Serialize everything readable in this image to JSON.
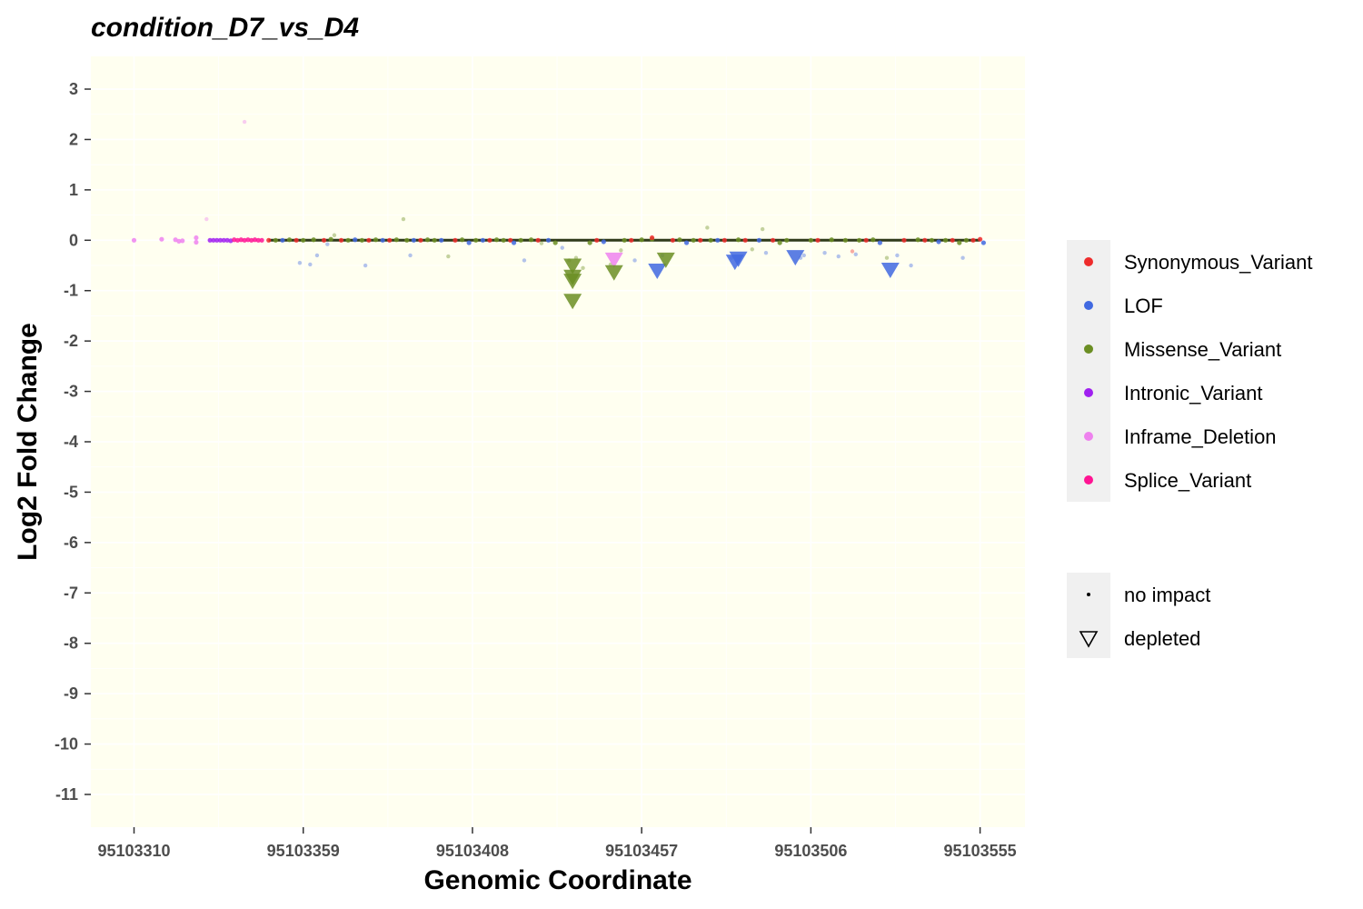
{
  "chart_data": {
    "type": "scatter",
    "title": "condition_D7_vs_D4",
    "xlabel": "Genomic Coordinate",
    "ylabel": "Log2 Fold Change",
    "xlim": [
      95103297.5,
      95103568
    ],
    "ylim": [
      -11.65,
      3.65
    ],
    "x_ticks": [
      95103310,
      95103359,
      95103408,
      95103457,
      95103506,
      95103555
    ],
    "x_tick_labels": [
      "95103310",
      "95103359",
      "95103408",
      "95103457",
      "95103506",
      "95103555"
    ],
    "y_ticks": [
      3,
      2,
      1,
      0,
      -1,
      -2,
      -3,
      -4,
      -5,
      -6,
      -7,
      -8,
      -9,
      -10,
      -11
    ],
    "y_tick_labels": [
      "3",
      "2",
      "1",
      "0",
      "-1",
      "-2",
      "-3",
      "-4",
      "-5",
      "-6",
      "-7",
      "-8",
      "-9",
      "-10",
      "-11"
    ],
    "grid": true,
    "panel_background": "#fffff0",
    "grid_color": "#ffffff",
    "legend_position": "right",
    "colors": {
      "Synonymous_Variant": "#ee2c2c",
      "LOF": "#4169e1",
      "Missense_Variant": "#6b8e23",
      "Intronic_Variant": "#a020f0",
      "Inframe_Deletion": "#ee82ee",
      "Splice_Variant": "#ff1493"
    },
    "legend_color_entries": [
      {
        "label": "Synonymous_Variant",
        "color": "#ee2c2c"
      },
      {
        "label": "LOF",
        "color": "#4169e1"
      },
      {
        "label": "Missense_Variant",
        "color": "#6b8e23"
      },
      {
        "label": "Intronic_Variant",
        "color": "#a020f0"
      },
      {
        "label": "Inframe_Deletion",
        "color": "#ee82ee"
      },
      {
        "label": "Splice_Variant",
        "color": "#ff1493"
      }
    ],
    "legend_shape_entries": [
      {
        "label": "no impact",
        "shape": "small-dot"
      },
      {
        "label": "depleted",
        "shape": "down-triangle"
      }
    ],
    "depleted_points": [
      {
        "x": 95103437,
        "y": -0.5,
        "category": "Missense_Variant"
      },
      {
        "x": 95103437,
        "y": -0.72,
        "category": "Missense_Variant"
      },
      {
        "x": 95103437,
        "y": -0.8,
        "category": "Missense_Variant"
      },
      {
        "x": 95103437,
        "y": -1.2,
        "category": "Missense_Variant"
      },
      {
        "x": 95103449,
        "y": -0.38,
        "category": "Inframe_Deletion"
      },
      {
        "x": 95103449,
        "y": -0.63,
        "category": "Missense_Variant"
      },
      {
        "x": 95103461.5,
        "y": -0.6,
        "category": "LOF"
      },
      {
        "x": 95103464,
        "y": -0.38,
        "category": "Missense_Variant"
      },
      {
        "x": 95103484,
        "y": -0.42,
        "category": "LOF"
      },
      {
        "x": 95103485,
        "y": -0.36,
        "category": "LOF"
      },
      {
        "x": 95103501.5,
        "y": -0.33,
        "category": "LOF"
      },
      {
        "x": 95103529,
        "y": -0.58,
        "category": "LOF"
      }
    ],
    "no_impact_points": [
      {
        "x": 95103310,
        "y": 0.0,
        "category": "Inframe_Deletion"
      },
      {
        "x": 95103318,
        "y": 0.02,
        "category": "Inframe_Deletion"
      },
      {
        "x": 95103322,
        "y": 0.01,
        "category": "Inframe_Deletion"
      },
      {
        "x": 95103323,
        "y": -0.02,
        "category": "Inframe_Deletion"
      },
      {
        "x": 95103324,
        "y": -0.01,
        "category": "Inframe_Deletion"
      },
      {
        "x": 95103328,
        "y": 0.05,
        "category": "Inframe_Deletion"
      },
      {
        "x": 95103328,
        "y": -0.04,
        "category": "Inframe_Deletion"
      },
      {
        "x": 95103331,
        "y": 0.42,
        "category": "Inframe_Deletion"
      },
      {
        "x": 95103332,
        "y": 0.0,
        "category": "Intronic_Variant"
      },
      {
        "x": 95103333,
        "y": 0.0,
        "category": "Intronic_Variant"
      },
      {
        "x": 95103334,
        "y": 0.0,
        "category": "Intronic_Variant"
      },
      {
        "x": 95103335,
        "y": 0.0,
        "category": "Intronic_Variant"
      },
      {
        "x": 95103336,
        "y": 0.0,
        "category": "Intronic_Variant"
      },
      {
        "x": 95103337,
        "y": 0.0,
        "category": "Intronic_Variant"
      },
      {
        "x": 95103338,
        "y": -0.01,
        "category": "Intronic_Variant"
      },
      {
        "x": 95103339,
        "y": 0.01,
        "category": "Splice_Variant"
      },
      {
        "x": 95103340,
        "y": 0.0,
        "category": "Splice_Variant"
      },
      {
        "x": 95103341,
        "y": 0.01,
        "category": "Splice_Variant"
      },
      {
        "x": 95103342,
        "y": 2.35,
        "category": "Inframe_Deletion"
      },
      {
        "x": 95103342,
        "y": 0.0,
        "category": "Splice_Variant"
      },
      {
        "x": 95103343,
        "y": 0.01,
        "category": "Splice_Variant"
      },
      {
        "x": 95103344,
        "y": 0.0,
        "category": "Splice_Variant"
      },
      {
        "x": 95103345,
        "y": 0.01,
        "category": "Splice_Variant"
      },
      {
        "x": 95103346,
        "y": 0.0,
        "category": "Splice_Variant"
      },
      {
        "x": 95103347,
        "y": 0.0,
        "category": "Splice_Variant"
      },
      {
        "x": 95103349,
        "y": 0.0,
        "category": "Synonymous_Variant"
      },
      {
        "x": 95103351,
        "y": 0.0,
        "category": "Missense_Variant"
      },
      {
        "x": 95103353,
        "y": 0.0,
        "category": "LOF"
      },
      {
        "x": 95103355,
        "y": 0.01,
        "category": "Missense_Variant"
      },
      {
        "x": 95103357,
        "y": 0.0,
        "category": "Synonymous_Variant"
      },
      {
        "x": 95103358,
        "y": -0.45,
        "category": "LOF"
      },
      {
        "x": 95103359,
        "y": 0.0,
        "category": "Missense_Variant"
      },
      {
        "x": 95103361,
        "y": -0.48,
        "category": "LOF"
      },
      {
        "x": 95103362,
        "y": 0.01,
        "category": "Missense_Variant"
      },
      {
        "x": 95103363,
        "y": -0.3,
        "category": "LOF"
      },
      {
        "x": 95103365,
        "y": 0.0,
        "category": "Synonymous_Variant"
      },
      {
        "x": 95103366,
        "y": -0.08,
        "category": "LOF"
      },
      {
        "x": 95103367,
        "y": 0.02,
        "category": "Missense_Variant"
      },
      {
        "x": 95103368,
        "y": 0.1,
        "category": "Missense_Variant"
      },
      {
        "x": 95103370,
        "y": 0.0,
        "category": "Synonymous_Variant"
      },
      {
        "x": 95103372,
        "y": 0.0,
        "category": "Missense_Variant"
      },
      {
        "x": 95103374,
        "y": 0.01,
        "category": "LOF"
      },
      {
        "x": 95103376,
        "y": 0.0,
        "category": "Missense_Variant"
      },
      {
        "x": 95103377,
        "y": -0.5,
        "category": "LOF"
      },
      {
        "x": 95103378,
        "y": 0.0,
        "category": "Synonymous_Variant"
      },
      {
        "x": 95103380,
        "y": 0.01,
        "category": "Missense_Variant"
      },
      {
        "x": 95103382,
        "y": 0.0,
        "category": "LOF"
      },
      {
        "x": 95103384,
        "y": 0.0,
        "category": "Synonymous_Variant"
      },
      {
        "x": 95103386,
        "y": 0.01,
        "category": "Missense_Variant"
      },
      {
        "x": 95103388,
        "y": 0.42,
        "category": "Missense_Variant"
      },
      {
        "x": 95103389,
        "y": 0.0,
        "category": "Missense_Variant"
      },
      {
        "x": 95103390,
        "y": -0.3,
        "category": "LOF"
      },
      {
        "x": 95103391,
        "y": 0.0,
        "category": "LOF"
      },
      {
        "x": 95103393,
        "y": 0.0,
        "category": "Synonymous_Variant"
      },
      {
        "x": 95103395,
        "y": 0.01,
        "category": "Missense_Variant"
      },
      {
        "x": 95103397,
        "y": 0.0,
        "category": "Missense_Variant"
      },
      {
        "x": 95103399,
        "y": 0.0,
        "category": "LOF"
      },
      {
        "x": 95103401,
        "y": -0.32,
        "category": "Missense_Variant"
      },
      {
        "x": 95103403,
        "y": 0.0,
        "category": "Synonymous_Variant"
      },
      {
        "x": 95103405,
        "y": 0.01,
        "category": "Missense_Variant"
      },
      {
        "x": 95103407,
        "y": -0.05,
        "category": "LOF"
      },
      {
        "x": 95103409,
        "y": 0.0,
        "category": "Missense_Variant"
      },
      {
        "x": 95103411,
        "y": 0.0,
        "category": "LOF"
      },
      {
        "x": 95103413,
        "y": 0.0,
        "category": "Synonymous_Variant"
      },
      {
        "x": 95103415,
        "y": 0.01,
        "category": "Missense_Variant"
      },
      {
        "x": 95103417,
        "y": 0.0,
        "category": "Missense_Variant"
      },
      {
        "x": 95103419,
        "y": 0.0,
        "category": "Synonymous_Variant"
      },
      {
        "x": 95103420,
        "y": -0.05,
        "category": "LOF"
      },
      {
        "x": 95103422,
        "y": 0.0,
        "category": "Missense_Variant"
      },
      {
        "x": 95103423,
        "y": -0.4,
        "category": "LOF"
      },
      {
        "x": 95103425,
        "y": 0.01,
        "category": "Missense_Variant"
      },
      {
        "x": 95103427,
        "y": 0.0,
        "category": "Synonymous_Variant"
      },
      {
        "x": 95103428,
        "y": -0.06,
        "category": "Missense_Variant"
      },
      {
        "x": 95103430,
        "y": 0.0,
        "category": "LOF"
      },
      {
        "x": 95103432,
        "y": -0.05,
        "category": "Missense_Variant"
      },
      {
        "x": 95103434,
        "y": -0.15,
        "category": "LOF"
      },
      {
        "x": 95103436,
        "y": -0.4,
        "category": "Missense_Variant"
      },
      {
        "x": 95103438,
        "y": -0.35,
        "category": "Missense_Variant"
      },
      {
        "x": 95103440,
        "y": -0.55,
        "category": "Missense_Variant"
      },
      {
        "x": 95103442,
        "y": -0.05,
        "category": "Missense_Variant"
      },
      {
        "x": 95103444,
        "y": 0.0,
        "category": "Synonymous_Variant"
      },
      {
        "x": 95103446,
        "y": -0.03,
        "category": "LOF"
      },
      {
        "x": 95103448,
        "y": -0.48,
        "category": "Missense_Variant"
      },
      {
        "x": 95103451,
        "y": -0.2,
        "category": "Missense_Variant"
      },
      {
        "x": 95103452,
        "y": 0.0,
        "category": "Missense_Variant"
      },
      {
        "x": 95103454,
        "y": 0.0,
        "category": "Synonymous_Variant"
      },
      {
        "x": 95103455,
        "y": -0.4,
        "category": "LOF"
      },
      {
        "x": 95103457,
        "y": 0.01,
        "category": "Missense_Variant"
      },
      {
        "x": 95103460,
        "y": 0.02,
        "category": "Missense_Variant"
      },
      {
        "x": 95103460,
        "y": 0.05,
        "category": "Synonymous_Variant"
      },
      {
        "x": 95103463,
        "y": -0.3,
        "category": "LOF"
      },
      {
        "x": 95103466,
        "y": 0.0,
        "category": "Synonymous_Variant"
      },
      {
        "x": 95103468,
        "y": 0.01,
        "category": "Missense_Variant"
      },
      {
        "x": 95103470,
        "y": -0.05,
        "category": "LOF"
      },
      {
        "x": 95103472,
        "y": 0.0,
        "category": "Missense_Variant"
      },
      {
        "x": 95103474,
        "y": 0.0,
        "category": "Synonymous_Variant"
      },
      {
        "x": 95103476,
        "y": 0.25,
        "category": "Missense_Variant"
      },
      {
        "x": 95103477,
        "y": 0.0,
        "category": "Missense_Variant"
      },
      {
        "x": 95103479,
        "y": 0.0,
        "category": "LOF"
      },
      {
        "x": 95103481,
        "y": 0.0,
        "category": "Synonymous_Variant"
      },
      {
        "x": 95103483,
        "y": -0.35,
        "category": "LOF"
      },
      {
        "x": 95103485,
        "y": 0.01,
        "category": "Missense_Variant"
      },
      {
        "x": 95103487,
        "y": 0.0,
        "category": "Synonymous_Variant"
      },
      {
        "x": 95103489,
        "y": -0.18,
        "category": "Missense_Variant"
      },
      {
        "x": 95103491,
        "y": 0.0,
        "category": "LOF"
      },
      {
        "x": 95103492,
        "y": 0.22,
        "category": "Missense_Variant"
      },
      {
        "x": 95103493,
        "y": -0.25,
        "category": "LOF"
      },
      {
        "x": 95103495,
        "y": 0.0,
        "category": "Synonymous_Variant"
      },
      {
        "x": 95103497,
        "y": -0.05,
        "category": "Missense_Variant"
      },
      {
        "x": 95103499,
        "y": 0.0,
        "category": "Missense_Variant"
      },
      {
        "x": 95103503,
        "y": -0.35,
        "category": "LOF"
      },
      {
        "x": 95103504,
        "y": -0.3,
        "category": "LOF"
      },
      {
        "x": 95103506,
        "y": 0.0,
        "category": "Missense_Variant"
      },
      {
        "x": 95103508,
        "y": 0.0,
        "category": "Synonymous_Variant"
      },
      {
        "x": 95103510,
        "y": -0.25,
        "category": "LOF"
      },
      {
        "x": 95103512,
        "y": 0.01,
        "category": "Missense_Variant"
      },
      {
        "x": 95103514,
        "y": -0.32,
        "category": "LOF"
      },
      {
        "x": 95103516,
        "y": 0.0,
        "category": "Missense_Variant"
      },
      {
        "x": 95103518,
        "y": -0.22,
        "category": "Synonymous_Variant"
      },
      {
        "x": 95103519,
        "y": -0.28,
        "category": "LOF"
      },
      {
        "x": 95103520,
        "y": 0.0,
        "category": "Missense_Variant"
      },
      {
        "x": 95103522,
        "y": 0.0,
        "category": "Synonymous_Variant"
      },
      {
        "x": 95103524,
        "y": 0.01,
        "category": "Missense_Variant"
      },
      {
        "x": 95103526,
        "y": -0.05,
        "category": "LOF"
      },
      {
        "x": 95103528,
        "y": -0.35,
        "category": "Missense_Variant"
      },
      {
        "x": 95103531,
        "y": -0.3,
        "category": "LOF"
      },
      {
        "x": 95103533,
        "y": 0.0,
        "category": "Synonymous_Variant"
      },
      {
        "x": 95103535,
        "y": -0.5,
        "category": "LOF"
      },
      {
        "x": 95103537,
        "y": 0.01,
        "category": "Missense_Variant"
      },
      {
        "x": 95103539,
        "y": 0.0,
        "category": "Synonymous_Variant"
      },
      {
        "x": 95103541,
        "y": 0.0,
        "category": "Missense_Variant"
      },
      {
        "x": 95103543,
        "y": -0.03,
        "category": "LOF"
      },
      {
        "x": 95103545,
        "y": 0.0,
        "category": "Missense_Variant"
      },
      {
        "x": 95103547,
        "y": 0.0,
        "category": "Synonymous_Variant"
      },
      {
        "x": 95103549,
        "y": -0.05,
        "category": "Missense_Variant"
      },
      {
        "x": 95103550,
        "y": -0.35,
        "category": "LOF"
      },
      {
        "x": 95103551,
        "y": 0.0,
        "category": "Missense_Variant"
      },
      {
        "x": 95103553,
        "y": 0.0,
        "category": "Synonymous_Variant"
      },
      {
        "x": 95103555,
        "y": 0.02,
        "category": "Synonymous_Variant"
      },
      {
        "x": 95103556,
        "y": -0.05,
        "category": "LOF"
      }
    ]
  }
}
